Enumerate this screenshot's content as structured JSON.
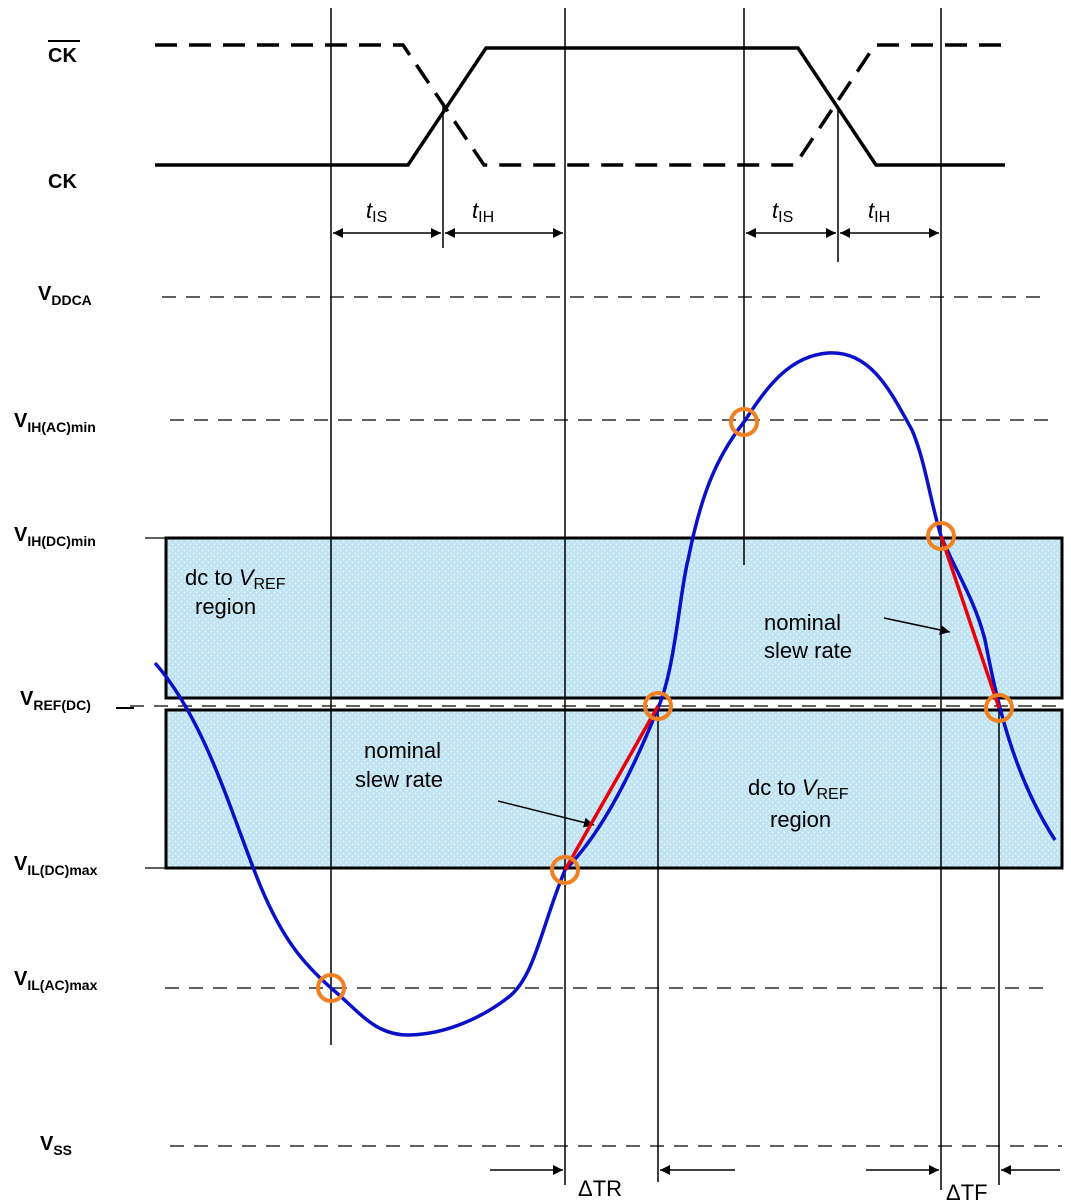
{
  "signals": {
    "ck_bar": "CK",
    "ck": "CK"
  },
  "levels": {
    "vddca": {
      "main": "V",
      "sub": "DDCA"
    },
    "vih_ac": {
      "main": "V",
      "sub": "IH(AC)min"
    },
    "vih_dc": {
      "main": "V",
      "sub": "IH(DC)min"
    },
    "vref_dc": {
      "main": "V",
      "sub": "REF(DC)"
    },
    "vil_dc": {
      "main": "V",
      "sub": "IL(DC)max"
    },
    "vil_ac": {
      "main": "V",
      "sub": "IL(AC)max"
    },
    "vss": {
      "main": "V",
      "sub": "SS"
    }
  },
  "timing": {
    "t_italic": "t",
    "is_sub": "IS",
    "ih_sub": "IH"
  },
  "regions": {
    "upper_line1": "dc to ",
    "upper_v": "V",
    "upper_ref": "REF",
    "upper_line2": "region",
    "lower_line1": "dc to ",
    "lower_v": "V",
    "lower_ref": "REF",
    "lower_line2": "region"
  },
  "annotations": {
    "slew_upper_line1": "nominal",
    "slew_upper_line2": "slew rate",
    "slew_lower_line1": "nominal",
    "slew_lower_line2": "slew rate",
    "delta_tr": "ΔTR",
    "delta_tf": "ΔTF"
  },
  "colors": {
    "region_fill": "#bfe3f2",
    "waveform": "#0b10c9",
    "slew_line": "#e8000b",
    "marker": "#f08020"
  }
}
